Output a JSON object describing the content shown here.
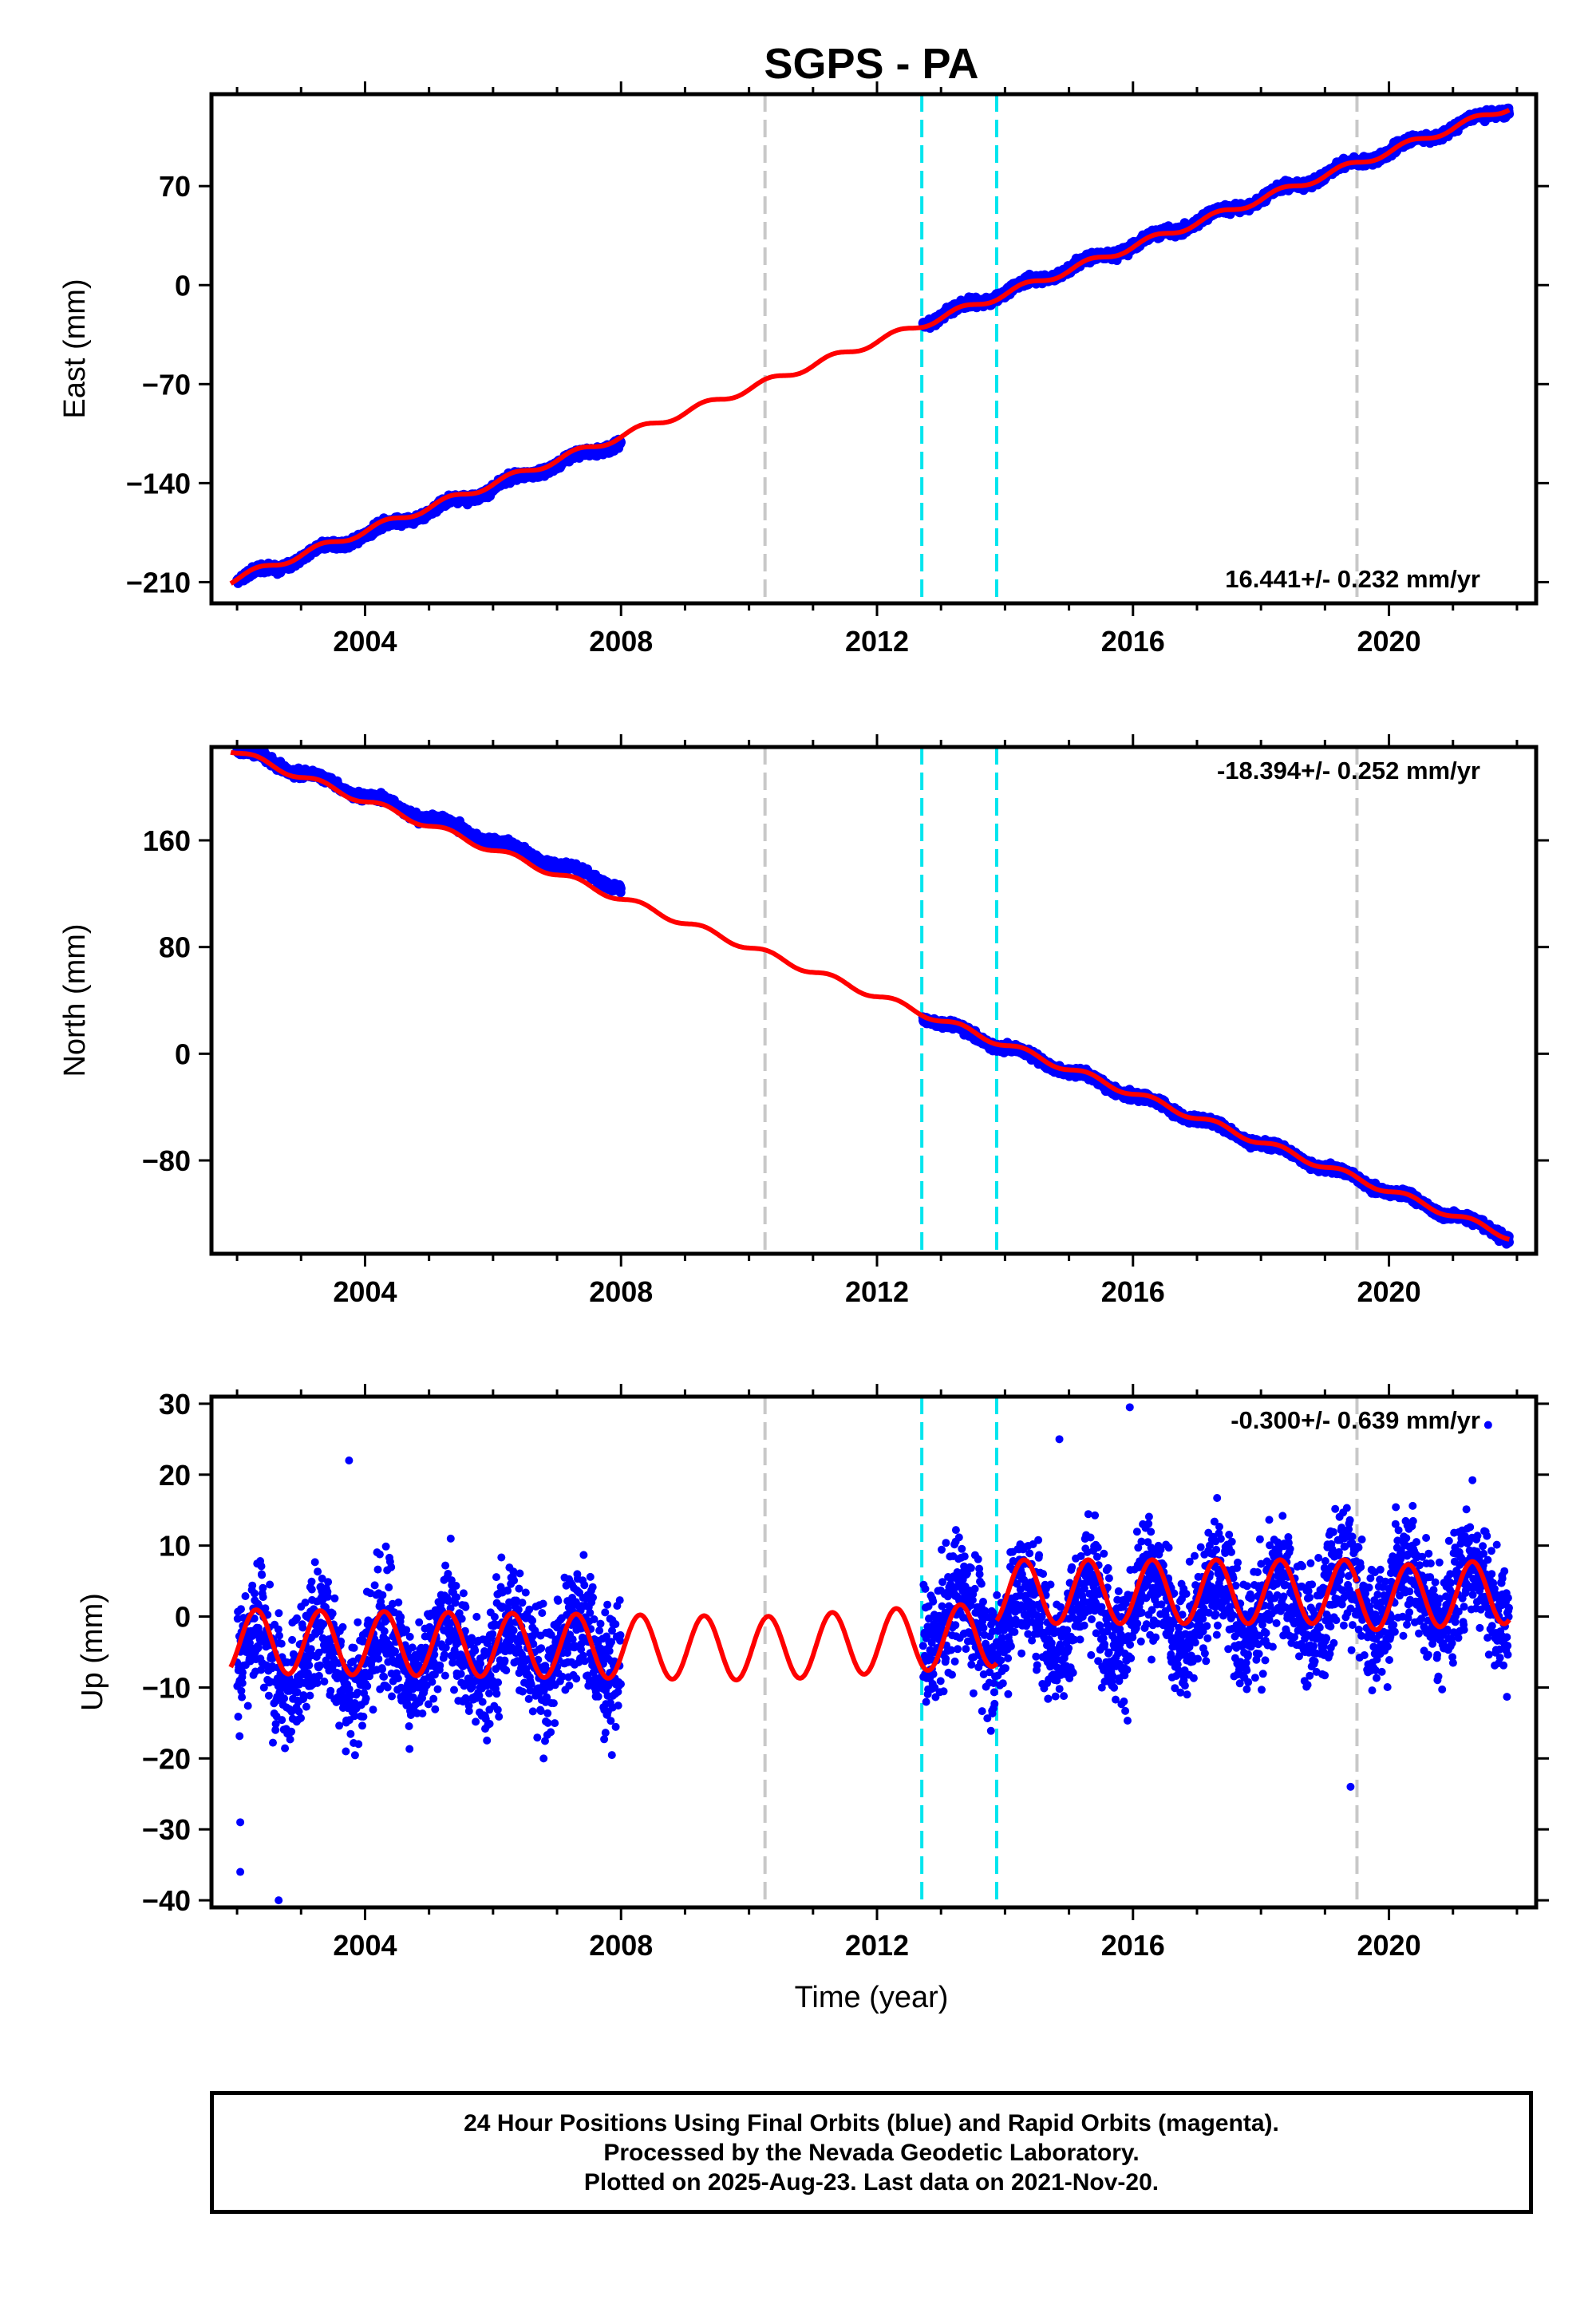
{
  "title": "SGPS - PA",
  "colors": {
    "data_points": "#0000ff",
    "model_line": "#ff0000",
    "equipment_change": "#c8c8c8",
    "earthquake": "#00e5ee",
    "frame": "#000000"
  },
  "x_axis": {
    "label": "Time (year)",
    "range": [
      2001.6,
      2022.3
    ],
    "ticks": [
      "2004",
      "2008",
      "2012",
      "2016",
      "2020"
    ],
    "tick_values": [
      2004,
      2008,
      2012,
      2016,
      2020
    ]
  },
  "event_lines": {
    "equipment_changes": [
      2010.25,
      2019.5
    ],
    "earthquakes": [
      2012.7,
      2013.87
    ]
  },
  "footer": {
    "line1": "24 Hour Positions Using Final Orbits (blue) and Rapid Orbits (magenta).",
    "line2": "Processed by the Nevada Geodetic Laboratory.",
    "line3": "Plotted on 2025-Aug-23. Last data on 2021-Nov-20."
  },
  "chart_data": [
    {
      "type": "scatter",
      "component": "east",
      "ylabel": "East (mm)",
      "ylim": [
        -225,
        135
      ],
      "yticks": [
        -210,
        -140,
        -70,
        0,
        70
      ],
      "ytick_labels": [
        "−210",
        "−140",
        "−70",
        "0",
        "70"
      ],
      "rate_label": "16.441+/- 0.232 mm/yr",
      "rate_label_position": "bottom-right",
      "series": [
        {
          "kind": "observations",
          "segments": [
            {
              "x_start": 2002.0,
              "x_end": 2008.0,
              "value_start": -209,
              "value_end": -110
            },
            {
              "x_start": 2012.72,
              "x_end": 2021.88,
              "value_start": -26,
              "value_end": 126
            }
          ],
          "scatter_mm": 3
        },
        {
          "kind": "model",
          "x_start": 2001.9,
          "x_end": 2021.88,
          "value_start": -209,
          "value_end": 126,
          "seasonal_amplitude_mm": 2.5,
          "offsets_mm": [
            {
              "x": 2012.7,
              "value": 8
            }
          ]
        }
      ]
    },
    {
      "type": "scatter",
      "component": "north",
      "ylabel": "North (mm)",
      "ylim": [
        -150,
        230
      ],
      "yticks": [
        -80,
        0,
        80,
        160
      ],
      "ytick_labels": [
        "−80",
        "0",
        "80",
        "160"
      ],
      "rate_label": "-18.394+/- 0.252 mm/yr",
      "rate_label_position": "top-right",
      "series": [
        {
          "kind": "observations",
          "segments": [
            {
              "x_start": 2002.0,
              "x_end": 2008.0,
              "value_start": 228,
              "value_end": 125
            },
            {
              "x_start": 2012.72,
              "x_end": 2021.88,
              "value_start": 28,
              "value_end": -137
            }
          ],
          "scatter_mm": 3
        },
        {
          "kind": "model",
          "x_start": 2001.9,
          "x_end": 2021.88,
          "value_start": 228,
          "value_end": -137,
          "seasonal_amplitude_mm": 2.5,
          "offsets_mm": []
        }
      ]
    },
    {
      "type": "scatter",
      "component": "up",
      "ylabel": "Up (mm)",
      "ylim": [
        -41,
        31
      ],
      "yticks": [
        -40,
        -30,
        -20,
        -10,
        0,
        10,
        20,
        30
      ],
      "ytick_labels": [
        "−40",
        "−30",
        "−20",
        "−10",
        "0",
        "10",
        "20",
        "30"
      ],
      "rate_label": "-0.300+/- 0.639 mm/yr",
      "rate_label_position": "top-right",
      "series": [
        {
          "kind": "observations",
          "segments": [
            {
              "x_start": 2002.0,
              "x_end": 2008.0,
              "mean_start": -6,
              "mean_end": -4
            },
            {
              "x_start": 2012.72,
              "x_end": 2021.88,
              "mean_start": -1,
              "mean_end": 4
            }
          ],
          "scatter_mm": 6,
          "outliers": [
            {
              "x": 2002.05,
              "value": -36
            },
            {
              "x": 2002.05,
              "value": -29
            },
            {
              "x": 2002.65,
              "value": -40
            },
            {
              "x": 2015.95,
              "value": 29.5
            },
            {
              "x": 2021.55,
              "value": 27
            },
            {
              "x": 2003.75,
              "value": 22
            },
            {
              "x": 2014.85,
              "value": 25
            },
            {
              "x": 2019.4,
              "value": -24
            }
          ]
        },
        {
          "kind": "model",
          "segments": [
            {
              "x_start": 2001.9,
              "x_end": 2010.25,
              "mean_start": -3.5,
              "mean_end": -4.5
            },
            {
              "x_start": 2010.25,
              "x_end": 2013.87,
              "mean_start": -4.5,
              "mean_end": -2.5
            },
            {
              "x_start": 2013.87,
              "x_end": 2019.5,
              "mean_start": 3.5,
              "mean_end": 3.5
            },
            {
              "x_start": 2019.5,
              "x_end": 2021.88,
              "mean_start": 2.5,
              "mean_end": 3.5
            }
          ],
          "seasonal_amplitude_mm": 4.5
        }
      ]
    }
  ]
}
